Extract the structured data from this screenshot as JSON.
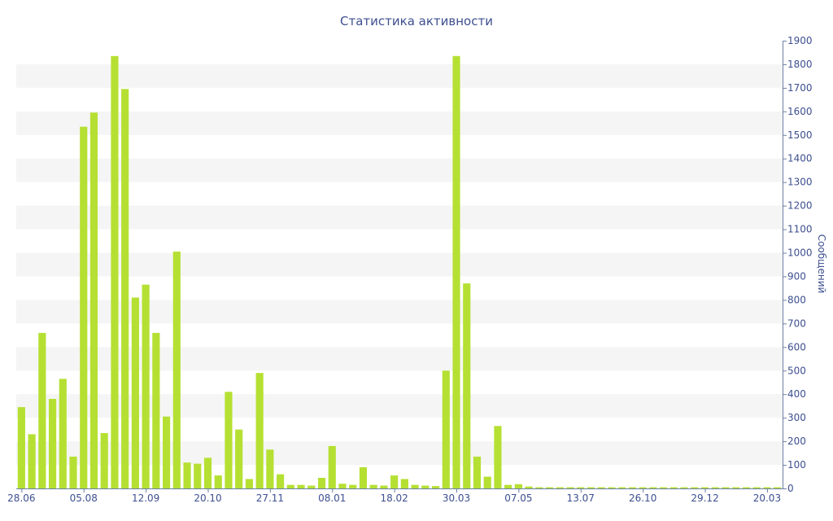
{
  "chart_data": {
    "type": "bar",
    "title": "Статистика активности",
    "ylabel": "Сообщений",
    "xlabel": "",
    "ylim": [
      0,
      1900
    ],
    "y_ticks": [
      0,
      100,
      200,
      300,
      400,
      500,
      600,
      700,
      800,
      900,
      1000,
      1100,
      1200,
      1300,
      1400,
      1500,
      1600,
      1700,
      1800,
      1900
    ],
    "y_axis_side": "right",
    "grid": "horizontal bands",
    "legend": "none",
    "x_tick_labels": [
      {
        "label": "28.06",
        "index": 0
      },
      {
        "label": "05.08",
        "index": 6
      },
      {
        "label": "12.09",
        "index": 12
      },
      {
        "label": "20.10",
        "index": 18
      },
      {
        "label": "27.11",
        "index": 24
      },
      {
        "label": "08.01",
        "index": 30
      },
      {
        "label": "18.02",
        "index": 36
      },
      {
        "label": "30.03",
        "index": 42
      },
      {
        "label": "07.05",
        "index": 48
      },
      {
        "label": "13.07",
        "index": 54
      },
      {
        "label": "26.10",
        "index": 60
      },
      {
        "label": "29.12",
        "index": 66
      },
      {
        "label": "20.03",
        "index": 72
      }
    ],
    "values": [
      345,
      230,
      660,
      380,
      465,
      135,
      1535,
      1595,
      235,
      1835,
      1695,
      810,
      865,
      660,
      305,
      1005,
      110,
      105,
      130,
      55,
      410,
      250,
      40,
      490,
      165,
      60,
      15,
      15,
      12,
      45,
      180,
      20,
      15,
      90,
      15,
      12,
      55,
      40,
      15,
      12,
      10,
      500,
      1835,
      870,
      135,
      50,
      265,
      15,
      18,
      8,
      5,
      5,
      5,
      5,
      5,
      5,
      5,
      5,
      5,
      5,
      5,
      5,
      5,
      5,
      5,
      5,
      5,
      5,
      5,
      5,
      5,
      5,
      5,
      5
    ],
    "colors": {
      "bar": "#b5e033",
      "band": "#f5f5f5",
      "text": "#3d4f8f",
      "axis": "#6b7fa3"
    }
  }
}
